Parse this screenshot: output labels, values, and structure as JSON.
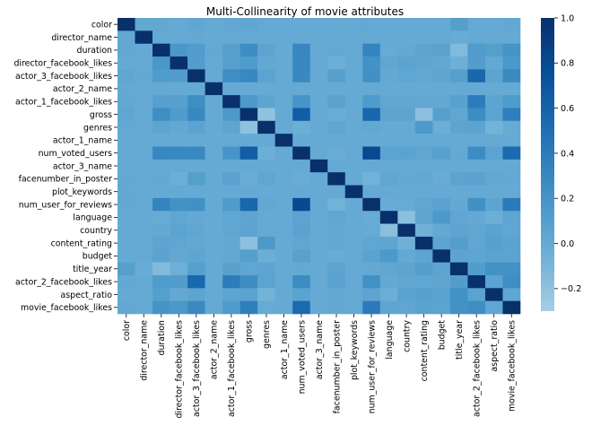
{
  "chart_data": {
    "type": "heatmap",
    "title": "Multi-Collinearity of movie attributes",
    "xlabel": "",
    "ylabel": "",
    "labels": [
      "color",
      "director_name",
      "duration",
      "director_facebook_likes",
      "actor_3_facebook_likes",
      "actor_2_name",
      "actor_1_facebook_likes",
      "gross",
      "genres",
      "actor_1_name",
      "num_voted_users",
      "actor_3_name",
      "facenumber_in_poster",
      "plot_keywords",
      "num_user_for_reviews",
      "language",
      "country",
      "content_rating",
      "budget",
      "title_year",
      "actor_2_facebook_likes",
      "aspect_ratio",
      "movie_facebook_likes"
    ],
    "matrix": [
      [
        1.0,
        0.02,
        0.02,
        0.0,
        0.03,
        0.01,
        0.02,
        0.03,
        0.01,
        0.0,
        0.0,
        0.0,
        0.01,
        0.01,
        0.01,
        0.0,
        0.0,
        0.0,
        0.0,
        0.1,
        0.01,
        0.0,
        0.02
      ],
      [
        0.02,
        1.0,
        0.0,
        0.0,
        0.01,
        0.0,
        0.0,
        0.0,
        0.0,
        0.0,
        0.0,
        0.0,
        0.0,
        0.0,
        0.0,
        0.0,
        0.0,
        0.0,
        0.0,
        -0.02,
        0.0,
        0.0,
        0.0
      ],
      [
        0.02,
        0.0,
        1.0,
        0.17,
        0.13,
        0.01,
        0.09,
        0.25,
        0.05,
        0.0,
        0.31,
        0.0,
        0.01,
        0.0,
        0.33,
        -0.01,
        0.01,
        0.05,
        0.07,
        -0.14,
        0.13,
        0.1,
        0.2
      ],
      [
        0.0,
        0.0,
        0.17,
        1.0,
        0.12,
        0.0,
        0.09,
        0.14,
        0.02,
        0.0,
        0.3,
        0.0,
        -0.04,
        0.0,
        0.22,
        0.03,
        0.06,
        0.03,
        0.02,
        -0.05,
        0.12,
        0.01,
        0.16
      ],
      [
        0.03,
        0.01,
        0.13,
        0.12,
        1.0,
        0.0,
        0.25,
        0.3,
        0.06,
        0.0,
        0.29,
        0.0,
        0.1,
        0.0,
        0.23,
        0.01,
        0.03,
        0.02,
        0.04,
        0.1,
        0.56,
        0.05,
        0.28
      ],
      [
        0.01,
        0.0,
        0.01,
        0.0,
        0.0,
        1.0,
        0.0,
        0.0,
        0.0,
        0.0,
        0.0,
        0.0,
        0.0,
        0.0,
        0.0,
        0.0,
        0.0,
        0.0,
        0.0,
        0.0,
        0.0,
        0.0,
        0.0
      ],
      [
        0.02,
        0.0,
        0.09,
        0.09,
        0.25,
        0.0,
        1.0,
        0.15,
        0.05,
        0.0,
        0.19,
        0.0,
        0.07,
        0.0,
        0.14,
        0.03,
        0.03,
        0.02,
        0.02,
        0.08,
        0.39,
        0.05,
        0.14
      ],
      [
        0.03,
        0.0,
        0.25,
        0.14,
        0.3,
        0.0,
        0.15,
        1.0,
        -0.2,
        0.0,
        0.64,
        0.0,
        -0.03,
        0.0,
        0.56,
        0.05,
        0.05,
        -0.19,
        0.1,
        0.03,
        0.26,
        0.06,
        0.37
      ],
      [
        0.01,
        0.0,
        0.05,
        0.02,
        0.06,
        0.0,
        0.05,
        -0.2,
        1.0,
        0.0,
        -0.04,
        0.0,
        0.03,
        0.0,
        0.02,
        0.0,
        0.0,
        0.15,
        -0.04,
        0.05,
        0.06,
        -0.08,
        -0.01
      ],
      [
        0.0,
        0.0,
        0.0,
        0.0,
        0.0,
        0.0,
        0.0,
        0.0,
        0.0,
        1.0,
        0.0,
        0.0,
        0.0,
        0.0,
        0.0,
        0.0,
        0.0,
        0.0,
        0.0,
        0.0,
        0.0,
        0.0,
        0.0
      ],
      [
        0.0,
        0.0,
        0.31,
        0.3,
        0.29,
        0.0,
        0.19,
        0.64,
        -0.04,
        0.0,
        1.0,
        0.0,
        -0.03,
        0.0,
        0.8,
        0.06,
        0.07,
        0.03,
        0.08,
        0.01,
        0.27,
        0.06,
        0.54
      ],
      [
        0.0,
        0.0,
        0.0,
        0.0,
        0.0,
        0.0,
        0.0,
        0.0,
        0.0,
        0.0,
        0.0,
        1.0,
        0.0,
        0.0,
        0.0,
        0.0,
        0.0,
        0.0,
        0.0,
        0.0,
        0.0,
        0.0,
        0.0
      ],
      [
        0.01,
        0.0,
        0.01,
        -0.04,
        0.1,
        0.0,
        0.07,
        -0.03,
        0.03,
        0.0,
        -0.03,
        0.0,
        1.0,
        0.0,
        -0.07,
        0.03,
        0.01,
        0.02,
        -0.02,
        0.06,
        0.07,
        0.02,
        0.01
      ],
      [
        0.01,
        0.0,
        0.0,
        0.0,
        0.0,
        0.0,
        0.0,
        0.0,
        0.0,
        0.0,
        0.0,
        0.0,
        0.0,
        1.0,
        0.0,
        0.0,
        0.0,
        0.0,
        0.0,
        0.0,
        0.0,
        0.0,
        0.0
      ],
      [
        0.01,
        0.0,
        0.33,
        0.22,
        0.23,
        0.0,
        0.14,
        0.56,
        0.02,
        0.0,
        0.8,
        0.0,
        -0.07,
        0.0,
        1.0,
        -0.02,
        -0.01,
        0.03,
        0.07,
        0.01,
        0.23,
        0.05,
        0.4
      ],
      [
        0.0,
        0.0,
        -0.01,
        0.03,
        0.01,
        0.0,
        0.03,
        0.05,
        0.0,
        0.0,
        0.06,
        0.0,
        0.03,
        0.0,
        -0.02,
        1.0,
        -0.18,
        0.04,
        0.15,
        0.03,
        0.01,
        -0.04,
        0.04
      ],
      [
        0.0,
        0.0,
        0.01,
        0.06,
        0.03,
        0.0,
        0.03,
        0.05,
        0.0,
        0.0,
        0.07,
        0.0,
        0.01,
        0.0,
        -0.01,
        -0.18,
        1.0,
        -0.06,
        0.01,
        0.05,
        0.03,
        0.07,
        0.03
      ],
      [
        0.0,
        0.0,
        0.05,
        0.03,
        0.02,
        0.0,
        0.02,
        -0.19,
        0.15,
        0.0,
        0.03,
        0.0,
        0.02,
        0.0,
        0.03,
        0.04,
        -0.06,
        1.0,
        0.05,
        0.11,
        0.03,
        0.09,
        0.07
      ],
      [
        0.0,
        0.0,
        0.07,
        0.02,
        0.04,
        0.0,
        0.02,
        0.1,
        -0.04,
        0.0,
        0.08,
        0.0,
        -0.02,
        0.0,
        0.07,
        0.15,
        0.01,
        0.05,
        1.0,
        0.05,
        0.04,
        0.07,
        0.06
      ],
      [
        0.1,
        -0.02,
        -0.14,
        -0.05,
        0.1,
        0.0,
        0.08,
        0.03,
        0.05,
        0.0,
        0.01,
        0.0,
        0.06,
        0.0,
        0.01,
        0.03,
        0.05,
        0.11,
        0.05,
        1.0,
        0.12,
        0.22,
        0.22
      ],
      [
        0.01,
        0.0,
        0.13,
        0.12,
        0.56,
        0.0,
        0.39,
        0.26,
        0.06,
        0.0,
        0.27,
        0.0,
        0.07,
        0.0,
        0.23,
        0.01,
        0.03,
        0.03,
        0.04,
        0.12,
        1.0,
        0.06,
        0.25
      ],
      [
        0.0,
        0.0,
        0.1,
        0.01,
        0.05,
        0.0,
        0.05,
        0.06,
        -0.08,
        0.0,
        0.06,
        0.0,
        0.02,
        0.0,
        0.05,
        -0.04,
        0.07,
        0.09,
        0.07,
        0.22,
        0.06,
        1.0,
        0.03
      ],
      [
        0.02,
        0.0,
        0.2,
        0.16,
        0.28,
        0.0,
        0.14,
        0.37,
        -0.01,
        0.0,
        0.54,
        0.0,
        0.01,
        0.0,
        0.4,
        0.04,
        0.03,
        0.07,
        0.06,
        0.22,
        0.25,
        0.03,
        1.0
      ]
    ],
    "vmin": -0.3,
    "vmax": 1.0,
    "colormap": "Blues",
    "colorbar_ticks": [
      "1.0",
      "0.8",
      "0.6",
      "0.4",
      "0.2",
      "0.0",
      "−0.2"
    ],
    "colorbar_values": [
      1.0,
      0.8,
      0.6,
      0.4,
      0.2,
      0.0,
      -0.2
    ],
    "colors": {
      "low": "#a6cee4",
      "mid": "#4592c6",
      "high": "#08306b"
    }
  }
}
